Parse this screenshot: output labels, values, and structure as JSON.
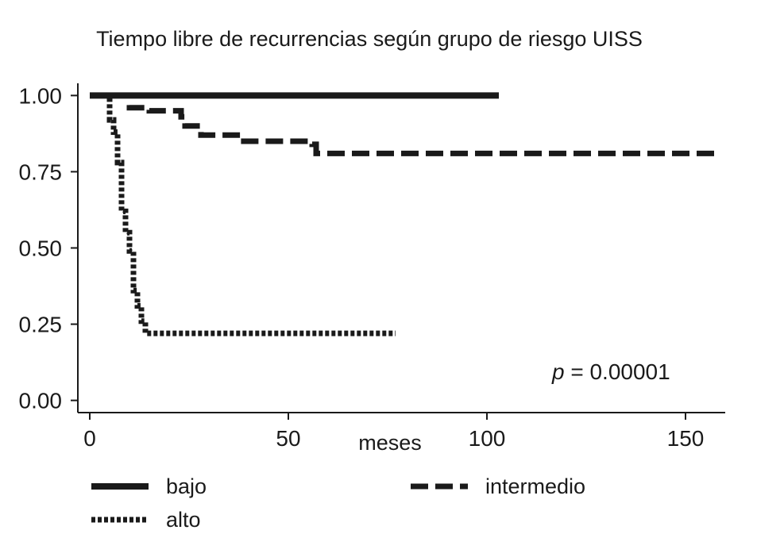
{
  "chart_data": {
    "type": "line",
    "title": "Tiempo libre de recurrencias según grupo de riesgo UISS",
    "xlabel": "meses",
    "ylabel": "",
    "xlim": [
      -3,
      160
    ],
    "ylim": [
      -0.04,
      1.04
    ],
    "xticks": [
      0,
      50,
      100,
      150
    ],
    "xtick_labels": [
      "0",
      "50",
      "100",
      "150"
    ],
    "yticks": [
      0,
      0.25,
      0.5,
      0.75,
      1.0
    ],
    "ytick_labels": [
      "0.00",
      "0.25",
      "0.50",
      "0.75",
      "1.00"
    ],
    "grid": false,
    "legend_position": "bottom",
    "annotation": {
      "italic": "p",
      "rest": " = 0.00001"
    },
    "series": [
      {
        "name": "bajo",
        "color": "#1a1a1a",
        "style": "solid",
        "x": [
          0,
          103
        ],
        "y": [
          1.0,
          1.0
        ]
      },
      {
        "name": "intermedio",
        "color": "#1a1a1a",
        "style": "dashed",
        "x": [
          0,
          7,
          10,
          15,
          23,
          24,
          28,
          38,
          56,
          57,
          158
        ],
        "y": [
          1.0,
          1.0,
          0.96,
          0.95,
          0.93,
          0.9,
          0.87,
          0.85,
          0.84,
          0.81,
          0.81
        ]
      },
      {
        "name": "alto",
        "color": "#1a1a1a",
        "style": "dotted",
        "x": [
          4,
          5,
          6,
          7,
          8,
          9,
          10,
          11,
          12,
          13,
          14,
          77
        ],
        "y": [
          1.0,
          0.92,
          0.88,
          0.78,
          0.62,
          0.55,
          0.49,
          0.36,
          0.31,
          0.26,
          0.22,
          0.22
        ]
      }
    ]
  }
}
